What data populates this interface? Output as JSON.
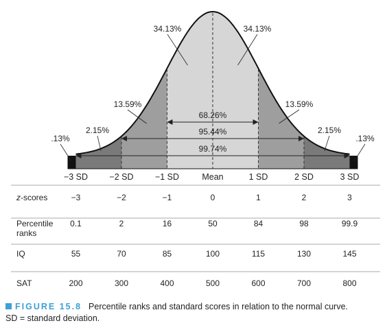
{
  "chart_data": {
    "type": "normal-distribution",
    "sd_labels": [
      "−3 SD",
      "−2 SD",
      "−1 SD",
      "Mean",
      "1 SD",
      "2 SD",
      "3 SD"
    ],
    "area_percents": [
      {
        "label": ".13%",
        "from": -4,
        "to": -3
      },
      {
        "label": "2.15%",
        "from": -3,
        "to": -2
      },
      {
        "label": "13.59%",
        "from": -2,
        "to": -1
      },
      {
        "label": "34.13%",
        "from": -1,
        "to": 0
      },
      {
        "label": "34.13%",
        "from": 0,
        "to": 1
      },
      {
        "label": "13.59%",
        "from": 1,
        "to": 2
      },
      {
        "label": "2.15%",
        "from": 2,
        "to": 3
      },
      {
        "label": ".13%",
        "from": 3,
        "to": 4
      }
    ],
    "ranges": [
      {
        "label": "68.26%",
        "from": -1,
        "to": 1
      },
      {
        "label": "95.44%",
        "from": -2,
        "to": 2
      },
      {
        "label": "99.74%",
        "from": -3,
        "to": 3
      }
    ]
  },
  "table": {
    "rows": [
      {
        "label": "z-scores",
        "label_italic_part": "z",
        "label_rest": "-scores",
        "values": [
          "−3",
          "−2",
          "−1",
          "0",
          "1",
          "2",
          "3"
        ]
      },
      {
        "label": "Percentile ranks",
        "label_line1": "Percentile",
        "label_line2": "ranks",
        "values": [
          "0.1",
          "2",
          "16",
          "50",
          "84",
          "98",
          "99.9"
        ]
      },
      {
        "label": "IQ",
        "values": [
          "55",
          "70",
          "85",
          "100",
          "115",
          "130",
          "145"
        ]
      },
      {
        "label": "SAT",
        "values": [
          "200",
          "300",
          "400",
          "500",
          "600",
          "700",
          "800"
        ]
      }
    ]
  },
  "caption": {
    "figure_label": "FIGURE 15.8",
    "text": "Percentile ranks and standard scores in relation to the normal curve.",
    "text2": "SD = standard deviation."
  },
  "colors": {
    "center": "#d6d6d6",
    "inner": "#9e9e9e",
    "outer": "#7a7a7a",
    "tail": "#111111",
    "accent": "#3da0d6"
  }
}
